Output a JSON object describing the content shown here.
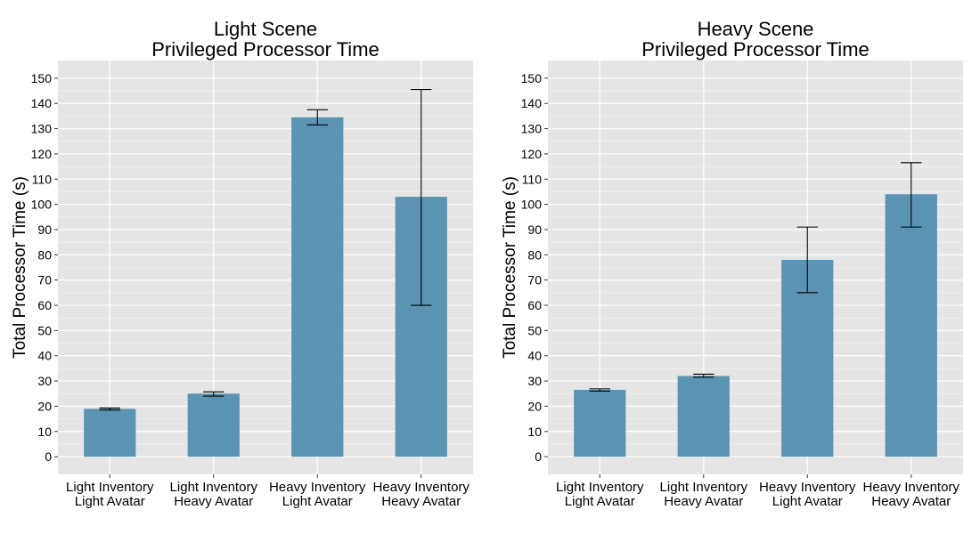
{
  "colors": {
    "panel_background": "#e5e5e5",
    "gridline": "#ffffff",
    "bar_fill": "#5b93b3",
    "error_bar": "#000000"
  },
  "chart_data": [
    {
      "type": "bar",
      "title_lines": [
        "Light Scene",
        "Privileged Processor Time"
      ],
      "ylabel": "Total Processor Time (s)",
      "xlabel": "",
      "ylim": [
        -7,
        157
      ],
      "y_ticks": [
        0,
        10,
        20,
        30,
        40,
        50,
        60,
        70,
        80,
        90,
        100,
        110,
        120,
        130,
        140,
        150
      ],
      "grid": true,
      "categories": [
        [
          "Light Inventory",
          "Light Avatar"
        ],
        [
          "Light Inventory",
          "Heavy Avatar"
        ],
        [
          "Heavy Inventory",
          "Light Avatar"
        ],
        [
          "Heavy Inventory",
          "Heavy Avatar"
        ]
      ],
      "values": [
        19,
        25,
        134.5,
        103
      ],
      "error_low": [
        18.5,
        24,
        131.5,
        60
      ],
      "error_high": [
        19.3,
        25.7,
        137.5,
        145.5
      ]
    },
    {
      "type": "bar",
      "title_lines": [
        "Heavy Scene",
        "Privileged Processor Time"
      ],
      "ylabel": "Total Processor Time (s)",
      "xlabel": "",
      "ylim": [
        -7,
        157
      ],
      "y_ticks": [
        0,
        10,
        20,
        30,
        40,
        50,
        60,
        70,
        80,
        90,
        100,
        110,
        120,
        130,
        140,
        150
      ],
      "grid": true,
      "categories": [
        [
          "Light Inventory",
          "Light Avatar"
        ],
        [
          "Light Inventory",
          "Heavy Avatar"
        ],
        [
          "Heavy Inventory",
          "Light Avatar"
        ],
        [
          "Heavy Inventory",
          "Heavy Avatar"
        ]
      ],
      "values": [
        26.5,
        32,
        78,
        104
      ],
      "error_low": [
        26,
        31.5,
        65,
        91
      ],
      "error_high": [
        26.9,
        32.7,
        91,
        116.5
      ]
    }
  ]
}
